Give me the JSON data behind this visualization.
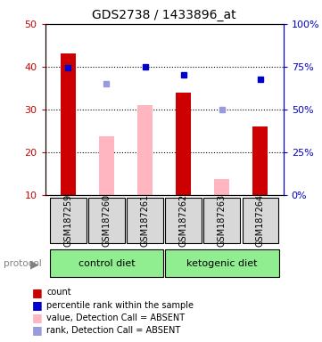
{
  "title": "GDS2738 / 1433896_at",
  "samples": [
    "GSM187259",
    "GSM187260",
    "GSM187261",
    "GSM187262",
    "GSM187263",
    "GSM187264"
  ],
  "red_bars": [
    43.2,
    null,
    null,
    34.0,
    null,
    26.0
  ],
  "pink_bars": [
    null,
    23.8,
    31.0,
    null,
    13.8,
    null
  ],
  "blue_dots": [
    39.8,
    null,
    40.0,
    38.0,
    null,
    37.0
  ],
  "lightblue_dots": [
    null,
    36.0,
    null,
    null,
    30.0,
    null
  ],
  "ylim_left": [
    10,
    50
  ],
  "ylim_right": [
    0,
    100
  ],
  "y_ticks_left": [
    10,
    20,
    30,
    40,
    50
  ],
  "y_ticks_right": [
    0,
    25,
    50,
    75,
    100
  ],
  "group_color": "#90EE90",
  "red_color": "#CC0000",
  "pink_color": "#FFB6C1",
  "blue_color": "#0000CD",
  "lightblue_color": "#9999DD",
  "legend": [
    {
      "label": "count",
      "color": "#CC0000"
    },
    {
      "label": "percentile rank within the sample",
      "color": "#0000CD"
    },
    {
      "label": "value, Detection Call = ABSENT",
      "color": "#FFB6C1"
    },
    {
      "label": "rank, Detection Call = ABSENT",
      "color": "#9999DD"
    }
  ]
}
